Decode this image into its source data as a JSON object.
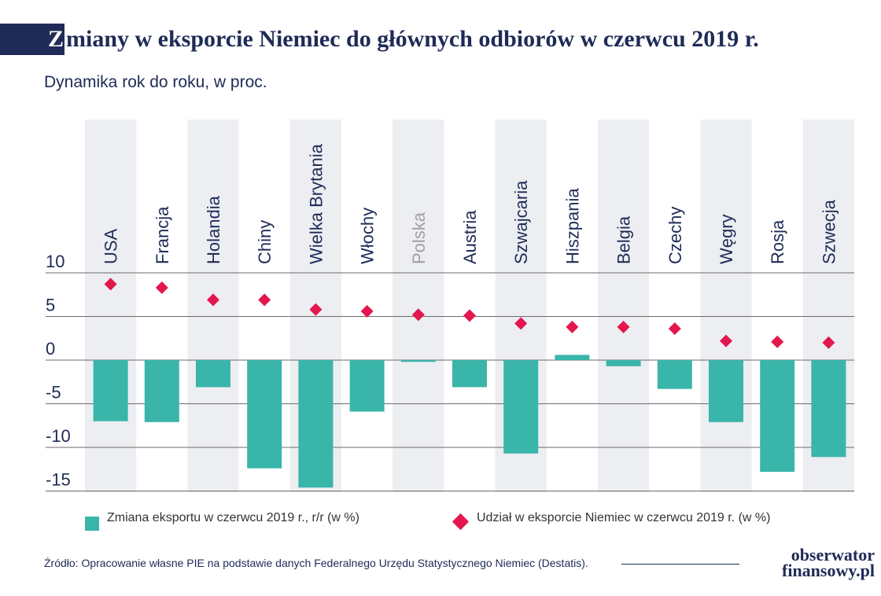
{
  "title": {
    "first_letter": "Z",
    "rest": "miany w eksporcie Niemiec do głównych odbiorów w czerwcu 2019 r."
  },
  "subtitle": "Dynamika rok do roku, w proc.",
  "colors": {
    "bar": "#3ab5aa",
    "diamond": "#e3174d",
    "navy": "#1f2b56",
    "band": "#eceef2",
    "muted_label": "#a0a0a0"
  },
  "chart_data": {
    "type": "bar",
    "categories": [
      "USA",
      "Francja",
      "Holandia",
      "Chiny",
      "Wielka Brytania",
      "Włochy",
      "Polska",
      "Austria",
      "Szwajcaria",
      "Hiszpania",
      "Belgia",
      "Czechy",
      "Węgry",
      "Rosja",
      "Szwecja"
    ],
    "muted_category": "Polska",
    "series": [
      {
        "name": "Zmiana eksportu w czerwcu 2019 r., r/r (w %)",
        "type": "bar",
        "values": [
          -7.0,
          -7.1,
          -3.1,
          -12.4,
          -14.6,
          -5.9,
          -0.2,
          -3.1,
          -10.7,
          0.6,
          -0.7,
          -3.3,
          -7.1,
          -12.8,
          -11.1
        ]
      },
      {
        "name": "Udział w eksporcie Niemiec w czerwcu 2019 r. (w %)",
        "type": "scatter",
        "marker": "diamond",
        "values": [
          8.7,
          8.3,
          6.9,
          6.9,
          5.8,
          5.6,
          5.2,
          5.1,
          4.2,
          3.8,
          3.8,
          3.6,
          2.2,
          2.1,
          2.0
        ]
      }
    ],
    "y_ticks": [
      "10",
      "5",
      "0",
      "-5",
      "-10",
      "-15"
    ],
    "y_tick_values": [
      10,
      5,
      0,
      -5,
      -10,
      -15
    ],
    "ylim": [
      -15,
      10
    ],
    "grid": true,
    "legend_position": "bottom"
  },
  "legend": {
    "bars": "Zmiana eksportu w czerwcu 2019 r., r/r (w %)",
    "diamonds": "Udział w eksporcie Niemiec w czerwcu 2019 r. (w %)"
  },
  "source": "Źródło: Opracowanie własne PIE na podstawie danych Federalnego Urzędu Statystycznego Niemiec (Destatis).",
  "logo": {
    "line1": "obserwator",
    "line2": "finansowy.pl"
  }
}
